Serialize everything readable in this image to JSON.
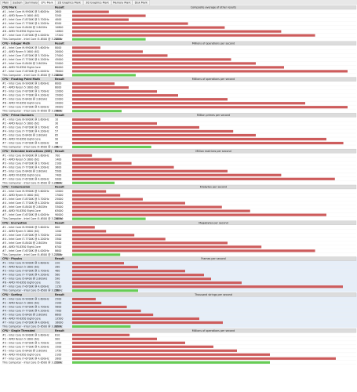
{
  "tabs": [
    "Main",
    "System",
    "Summary",
    "CPU Mark",
    "2D Graphics Mark",
    "3D Graphics Mark",
    "Memory Mark",
    "Disk Mark"
  ],
  "active_tab": 3,
  "result_header": "Result",
  "cpus": [
    "#1 - Intel Core i9-9900K @ 3.60GHz",
    "#2 - AMD Ryzen 5 1600 (6C)",
    "#3 - Intel Core i7-8700K @ 3.70GHz",
    "#4 - Intel Core i7-7700K @ 4.20GHz",
    "#5 - Intel Core i5-8400 @ 2.80GHz",
    "#6 - AMD FX-8350 Eight-Core",
    "#7 - Intel Core i7-6700K @ 4.00GHz",
    "This Computer - Intel Core i5-6500 @ 3.20GHz"
  ],
  "bar_color": "#cd5c5c",
  "own_color": "#66cc55",
  "sections": [
    {
      "title": "CPU Mark",
      "caption": "Composite average of other results",
      "max": 20000,
      "values": [
        2600,
        5200,
        4000,
        8200,
        10800,
        14800,
        17200,
        5200
      ]
    },
    {
      "title": "CPU - Integer Math",
      "caption": "Millions of operations per second",
      "max": 80000,
      "values": [
        8000,
        20000,
        27000,
        45000,
        52000,
        60000,
        78000,
        18000
      ]
    },
    {
      "title": "CPU - Floating Point Math",
      "caption": "Millions of operations per second",
      "max": 40000,
      "values": [
        6000,
        8000,
        12000,
        15000,
        22000,
        33000,
        39000,
        7000
      ]
    },
    {
      "title": "CPU - Prime Numbers",
      "caption": "Million primes per second",
      "max": 100,
      "values": [
        10,
        30,
        45,
        57,
        65,
        90,
        96,
        28
      ]
    },
    {
      "title": "CPU - Extended Instructions (SSE)",
      "caption": "Million matrices per second",
      "max": 10000,
      "values": [
        700,
        1400,
        2100,
        3600,
        5500,
        7400,
        9300,
        1500
      ]
    },
    {
      "title": "CPU - Compression",
      "caption": "Kilobytes per second",
      "max": 100000,
      "values": [
        12000,
        17000,
        25000,
        40000,
        53000,
        63000,
        90000,
        26000
      ]
    },
    {
      "title": "CPU - Encryption",
      "caption": "Megabytes per second",
      "max": 10000,
      "values": [
        800,
        1200,
        2200,
        3300,
        5500,
        6700,
        8600,
        1700
      ]
    },
    {
      "title": "CPU - Physics",
      "caption": "Frames per second",
      "max": 1200,
      "values": [
        220,
        280,
        480,
        560,
        590,
        720,
        1150,
        280
      ]
    },
    {
      "title": "CPU - Sorting",
      "caption": "Thousand strings per second",
      "max": 30000,
      "values": [
        2500,
        3100,
        5800,
        7300,
        8600,
        13500,
        16000,
        6200
      ]
    },
    {
      "title": "CPU - Single Threaded",
      "caption": "Millions of operations per second",
      "max": 3000,
      "values": [
        610,
        900,
        1200,
        1500,
        1750,
        2100,
        2800,
        2100
      ]
    }
  ]
}
